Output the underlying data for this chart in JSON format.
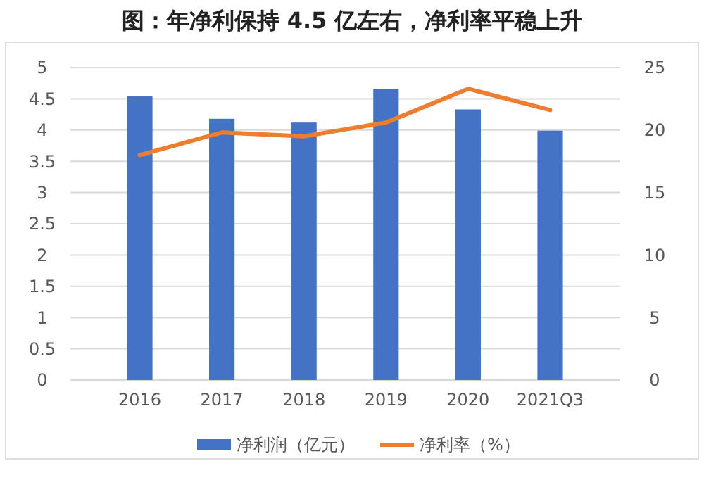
{
  "chart_data": {
    "type": "bar",
    "title": "图：年净利保持 4.5 亿左右，净利率平稳上升",
    "categories": [
      "2016",
      "2017",
      "2018",
      "2019",
      "2020",
      "2021Q3"
    ],
    "series": [
      {
        "name": "净利润（亿元）",
        "color": "#4472c4",
        "values": [
          4.54,
          4.18,
          4.12,
          4.66,
          4.33,
          3.99
        ]
      },
      {
        "name": "净利率（%）",
        "type": "line",
        "axis": "y2",
        "color": "#ed7d31",
        "values": [
          18.0,
          19.8,
          19.5,
          20.6,
          23.3,
          21.6
        ]
      }
    ],
    "ylim": [
      0,
      5
    ],
    "yticks": [
      0,
      0.5,
      1,
      1.5,
      2,
      2.5,
      3,
      3.5,
      4,
      4.5,
      5
    ],
    "y2lim": [
      0,
      25
    ],
    "y2ticks": [
      0,
      5,
      10,
      15,
      20,
      25
    ],
    "grid": "y",
    "legend": "bottom",
    "marker": "none",
    "line_style": "solid"
  }
}
